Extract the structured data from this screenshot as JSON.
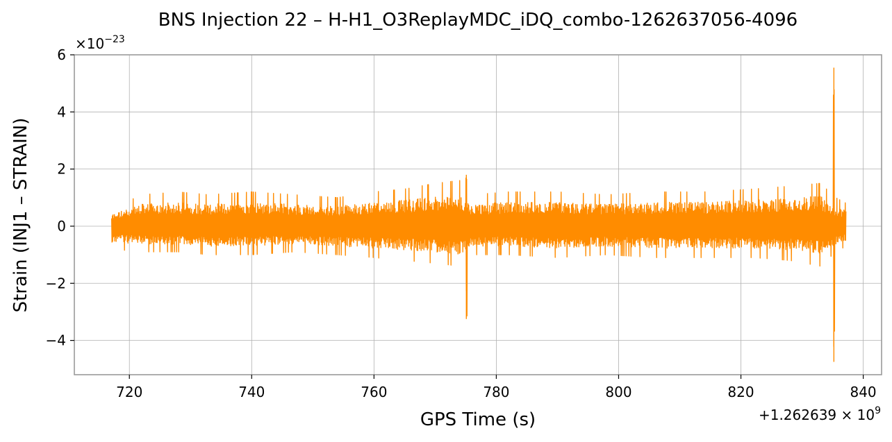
{
  "chart_data": {
    "type": "line",
    "title": "BNS Injection 22 – H-H1_O3ReplayMDC_iDQ_combo-1262637056-4096",
    "xlabel": "GPS Time (s)",
    "ylabel": "Strain (INJ1 – STRAIN)",
    "y_scale_label": "×10",
    "y_scale_exponent": "−23",
    "x_offset_label": "+1.262639 × 10",
    "x_offset_exponent": "9",
    "xlim": [
      711,
      843
    ],
    "ylim": [
      -5.2,
      6.0
    ],
    "x_ticks": [
      720,
      740,
      760,
      780,
      800,
      820,
      840
    ],
    "x_tick_labels": [
      "720",
      "740",
      "760",
      "780",
      "800",
      "820",
      "840"
    ],
    "y_ticks": [
      -4,
      -2,
      0,
      2,
      4,
      6
    ],
    "y_tick_labels": [
      "−4",
      "−2",
      "0",
      "2",
      "4",
      "6"
    ],
    "grid": true,
    "series": [
      {
        "color": "#ff8c00",
        "x_start": 717.1,
        "x_end": 837.2,
        "envelope": [
          {
            "x": 717.1,
            "lo": -0.8,
            "hi": 0.6
          },
          {
            "x": 722,
            "lo": -0.9,
            "hi": 1.1
          },
          {
            "x": 728,
            "lo": -0.9,
            "hi": 1.2
          },
          {
            "x": 733,
            "lo": -1.0,
            "hi": 1.1
          },
          {
            "x": 740,
            "lo": -1.0,
            "hi": 1.2
          },
          {
            "x": 747,
            "lo": -0.9,
            "hi": 1.1
          },
          {
            "x": 754,
            "lo": -1.0,
            "hi": 1.0
          },
          {
            "x": 760,
            "lo": -1.1,
            "hi": 1.2
          },
          {
            "x": 765,
            "lo": -1.2,
            "hi": 1.3
          },
          {
            "x": 770,
            "lo": -1.3,
            "hi": 1.5
          },
          {
            "x": 774,
            "lo": -1.4,
            "hi": 1.6
          },
          {
            "x": 776,
            "lo": -1.0,
            "hi": 1.1
          },
          {
            "x": 782,
            "lo": -1.0,
            "hi": 1.2
          },
          {
            "x": 790,
            "lo": -1.1,
            "hi": 1.2
          },
          {
            "x": 798,
            "lo": -1.0,
            "hi": 1.1
          },
          {
            "x": 806,
            "lo": -1.1,
            "hi": 1.2
          },
          {
            "x": 814,
            "lo": -1.1,
            "hi": 1.2
          },
          {
            "x": 822,
            "lo": -1.1,
            "hi": 1.3
          },
          {
            "x": 828,
            "lo": -1.2,
            "hi": 1.4
          },
          {
            "x": 833,
            "lo": -1.4,
            "hi": 1.5
          },
          {
            "x": 835.5,
            "lo": -0.9,
            "hi": 1.0
          },
          {
            "x": 837.2,
            "lo": -0.7,
            "hi": 0.8
          }
        ],
        "spikes": [
          {
            "x": 775.1,
            "min": -3.25,
            "max": 1.8
          },
          {
            "x": 835.2,
            "min": -4.75,
            "max": 5.55
          }
        ]
      }
    ]
  }
}
